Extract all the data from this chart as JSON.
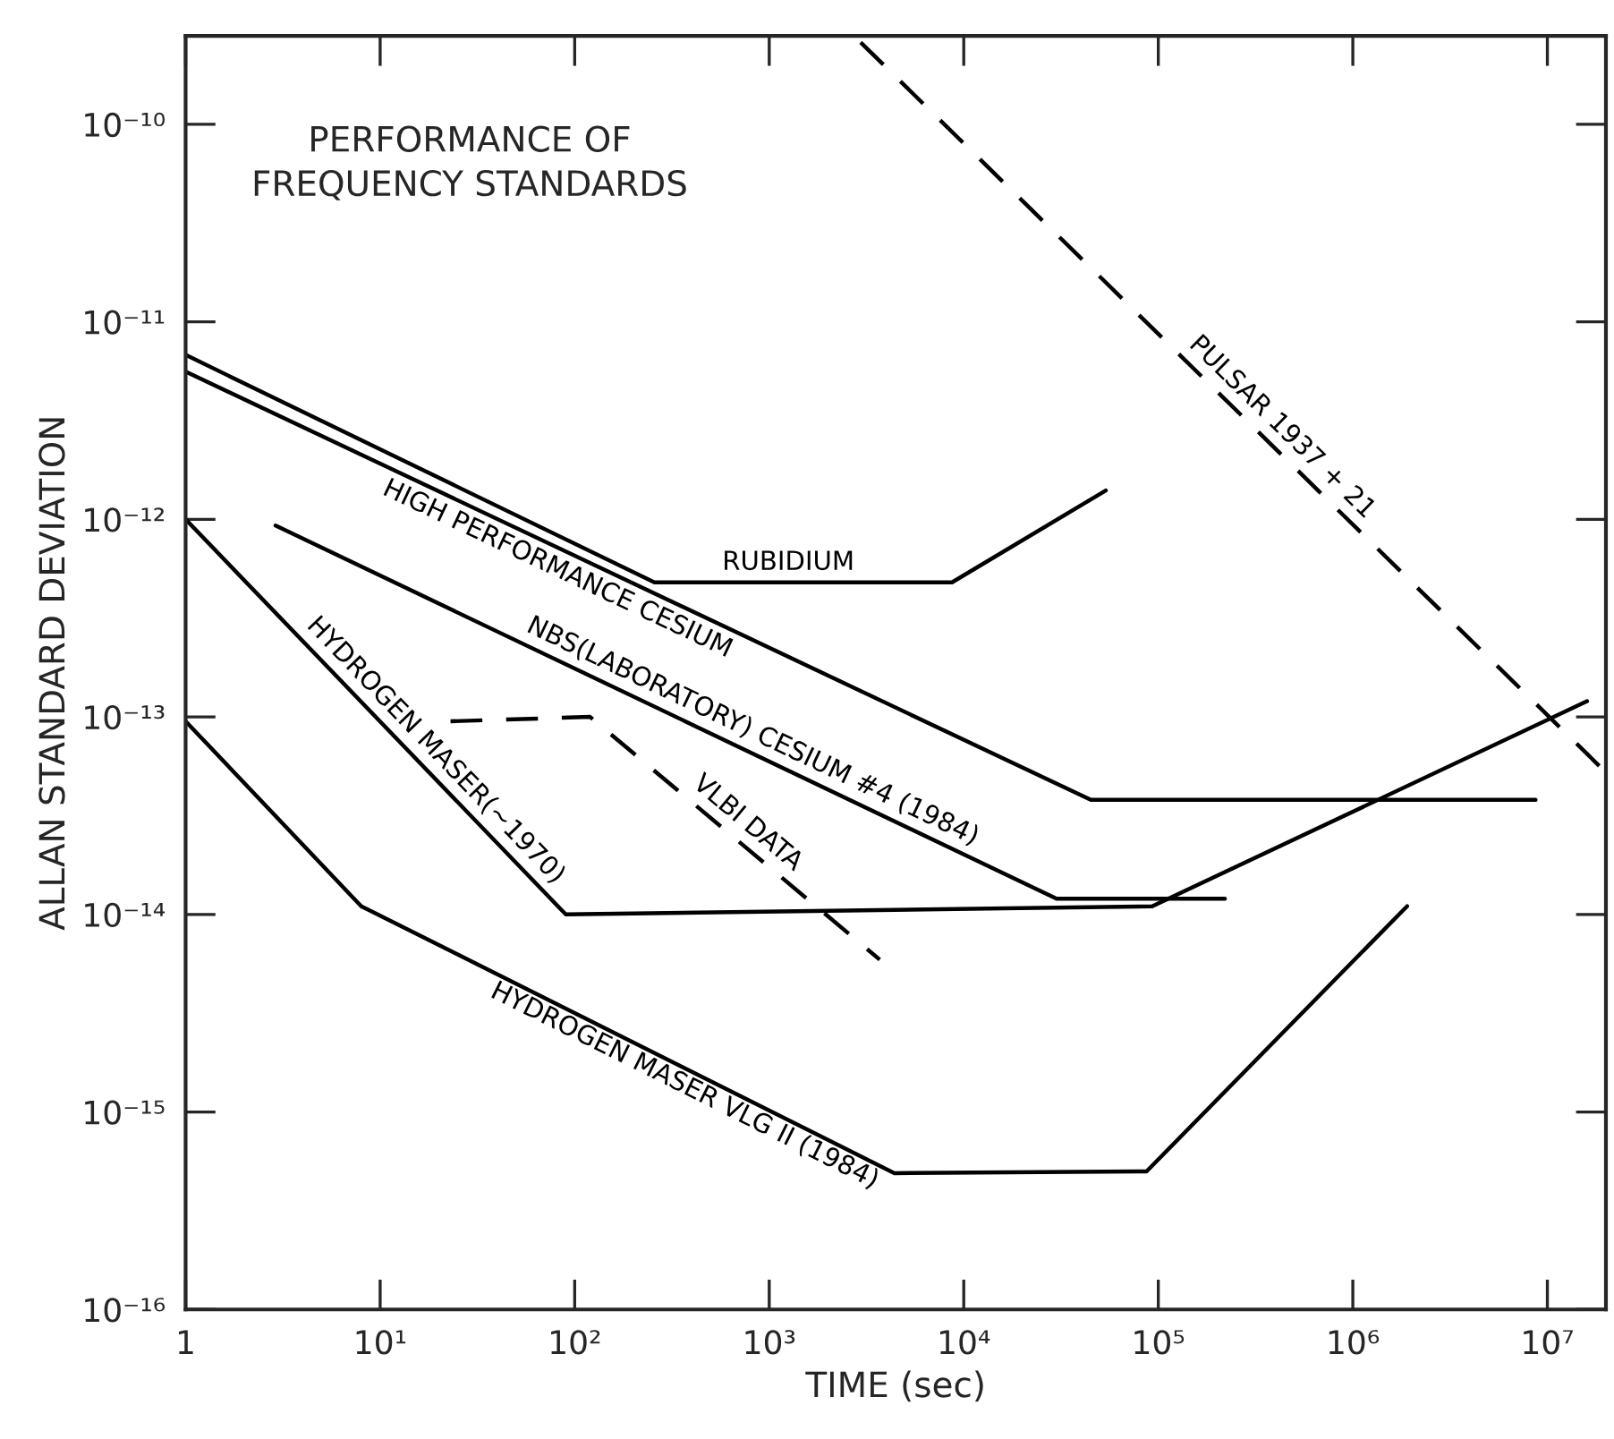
{
  "chart_data": {
    "type": "line",
    "title": "PERFORMANCE OF\nFREQUENCY STANDARDS",
    "xlabel": "TIME (sec)",
    "ylabel": "ALLAN STANDARD DEVIATION",
    "log": "xy",
    "grid": false,
    "legend": false,
    "marker": "none",
    "xlim": [
      1,
      20000000.0
    ],
    "ylim": [
      1e-16,
      2.8e-10
    ],
    "xticks": [
      {
        "value": 1,
        "label": "1"
      },
      {
        "value": 10,
        "label": "10¹"
      },
      {
        "value": 100,
        "label": "10²"
      },
      {
        "value": 1000,
        "label": "10³"
      },
      {
        "value": 10000,
        "label": "10⁴"
      },
      {
        "value": 100000,
        "label": "10⁵"
      },
      {
        "value": 1000000,
        "label": "10⁶"
      },
      {
        "value": 10000000,
        "label": "10⁷"
      }
    ],
    "yticks": [
      {
        "value": 1e-16,
        "label": "10⁻¹⁶"
      },
      {
        "value": 1e-15,
        "label": "10⁻¹⁵"
      },
      {
        "value": 1e-14,
        "label": "10⁻¹⁴"
      },
      {
        "value": 1e-13,
        "label": "10⁻¹³"
      },
      {
        "value": 1e-12,
        "label": "10⁻¹²"
      },
      {
        "value": 1e-11,
        "label": "10⁻¹¹"
      },
      {
        "value": 1e-10,
        "label": "10⁻¹⁰"
      }
    ],
    "series": [
      {
        "name": "RUBIDIUM",
        "color": "#000000",
        "line_style": "solid",
        "x": [
          1,
          257,
          8700,
          53700
        ],
        "values": [
          6.8e-12,
          4.8e-13,
          4.8e-13,
          1.4e-12
        ]
      },
      {
        "name": "HIGH PERFORMANCE CESIUM",
        "color": "#000000",
        "line_style": "solid",
        "x": [
          1,
          45000,
          8700000
        ],
        "values": [
          5.6e-12,
          3.8e-14,
          3.8e-14
        ]
      },
      {
        "name": "NBS(LABORATORY) CESIUM #4 (1984)",
        "color": "#000000",
        "line_style": "solid",
        "x": [
          2.9,
          30000,
          220000
        ],
        "values": [
          9.3e-13,
          1.2e-14,
          1.2e-14
        ]
      },
      {
        "name": "HYDROGEN MASER(~1970)",
        "color": "#000000",
        "line_style": "solid",
        "x": [
          1,
          90,
          93000,
          16000000
        ],
        "values": [
          1e-12,
          1e-14,
          1.1e-14,
          1.2e-13
        ]
      },
      {
        "name": "HYDROGEN MASER VLG II (1984)",
        "color": "#000000",
        "line_style": "solid",
        "x": [
          1,
          8,
          4400,
          87000,
          1900000
        ],
        "values": [
          9.5e-14,
          1.1e-14,
          4.9e-16,
          5e-16,
          1.1e-14
        ]
      },
      {
        "name": "VLBI DATA",
        "color": "#000000",
        "line_style": "dashed",
        "x": [
          23,
          120,
          3700
        ],
        "values": [
          9.5e-14,
          1e-13,
          5.9e-15
        ]
      },
      {
        "name": "PULSAR 1937 + 21",
        "color": "#000000",
        "line_style": "dashed",
        "x": [
          2950,
          19000000
        ],
        "values": [
          2.6e-10,
          5.5e-14
        ]
      }
    ]
  }
}
